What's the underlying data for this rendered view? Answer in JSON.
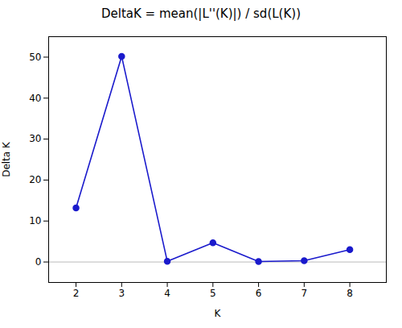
{
  "chart_data": {
    "type": "line",
    "title": "DeltaK = mean(|L''(K)|) / sd(L(K))",
    "xlabel": "K",
    "ylabel": "Delta K",
    "x": [
      2,
      3,
      4,
      5,
      6,
      7,
      8
    ],
    "values": [
      13.2,
      50.2,
      0.15,
      4.7,
      0.1,
      0.3,
      3.0
    ],
    "color": "#1a1acc",
    "marker": "circle",
    "xlim": [
      1.4,
      8.8
    ],
    "xticks": [
      2,
      3,
      4,
      5,
      6,
      7,
      8
    ],
    "ylim": [
      -5,
      55
    ],
    "yticks": [
      0,
      10,
      20,
      30,
      40,
      50
    ],
    "reference_lines": [
      {
        "y": 0,
        "color": "#bbbbbb"
      }
    ],
    "grid": false
  }
}
